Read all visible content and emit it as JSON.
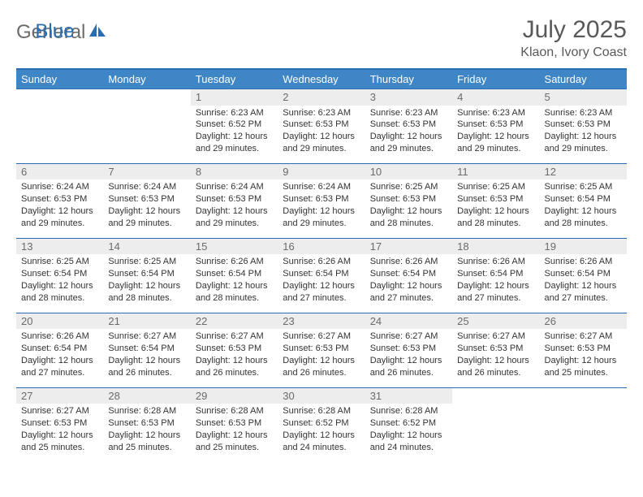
{
  "brand": {
    "part1": "General",
    "part2": "Blue"
  },
  "title": "July 2025",
  "location": "Klaon, Ivory Coast",
  "colors": {
    "header_bg": "#3e86c6",
    "header_text": "#ffffff",
    "border": "#2a6db0",
    "num_bg": "#ededed",
    "num_text": "#6b6b6b",
    "body_text": "#333333",
    "title_text": "#595959"
  },
  "day_names": [
    "Sunday",
    "Monday",
    "Tuesday",
    "Wednesday",
    "Thursday",
    "Friday",
    "Saturday"
  ],
  "weeks": [
    [
      null,
      null,
      {
        "n": "1",
        "sunrise": "6:23 AM",
        "sunset": "6:52 PM",
        "daylight": "12 hours and 29 minutes."
      },
      {
        "n": "2",
        "sunrise": "6:23 AM",
        "sunset": "6:53 PM",
        "daylight": "12 hours and 29 minutes."
      },
      {
        "n": "3",
        "sunrise": "6:23 AM",
        "sunset": "6:53 PM",
        "daylight": "12 hours and 29 minutes."
      },
      {
        "n": "4",
        "sunrise": "6:23 AM",
        "sunset": "6:53 PM",
        "daylight": "12 hours and 29 minutes."
      },
      {
        "n": "5",
        "sunrise": "6:23 AM",
        "sunset": "6:53 PM",
        "daylight": "12 hours and 29 minutes."
      }
    ],
    [
      {
        "n": "6",
        "sunrise": "6:24 AM",
        "sunset": "6:53 PM",
        "daylight": "12 hours and 29 minutes."
      },
      {
        "n": "7",
        "sunrise": "6:24 AM",
        "sunset": "6:53 PM",
        "daylight": "12 hours and 29 minutes."
      },
      {
        "n": "8",
        "sunrise": "6:24 AM",
        "sunset": "6:53 PM",
        "daylight": "12 hours and 29 minutes."
      },
      {
        "n": "9",
        "sunrise": "6:24 AM",
        "sunset": "6:53 PM",
        "daylight": "12 hours and 29 minutes."
      },
      {
        "n": "10",
        "sunrise": "6:25 AM",
        "sunset": "6:53 PM",
        "daylight": "12 hours and 28 minutes."
      },
      {
        "n": "11",
        "sunrise": "6:25 AM",
        "sunset": "6:53 PM",
        "daylight": "12 hours and 28 minutes."
      },
      {
        "n": "12",
        "sunrise": "6:25 AM",
        "sunset": "6:54 PM",
        "daylight": "12 hours and 28 minutes."
      }
    ],
    [
      {
        "n": "13",
        "sunrise": "6:25 AM",
        "sunset": "6:54 PM",
        "daylight": "12 hours and 28 minutes."
      },
      {
        "n": "14",
        "sunrise": "6:25 AM",
        "sunset": "6:54 PM",
        "daylight": "12 hours and 28 minutes."
      },
      {
        "n": "15",
        "sunrise": "6:26 AM",
        "sunset": "6:54 PM",
        "daylight": "12 hours and 28 minutes."
      },
      {
        "n": "16",
        "sunrise": "6:26 AM",
        "sunset": "6:54 PM",
        "daylight": "12 hours and 27 minutes."
      },
      {
        "n": "17",
        "sunrise": "6:26 AM",
        "sunset": "6:54 PM",
        "daylight": "12 hours and 27 minutes."
      },
      {
        "n": "18",
        "sunrise": "6:26 AM",
        "sunset": "6:54 PM",
        "daylight": "12 hours and 27 minutes."
      },
      {
        "n": "19",
        "sunrise": "6:26 AM",
        "sunset": "6:54 PM",
        "daylight": "12 hours and 27 minutes."
      }
    ],
    [
      {
        "n": "20",
        "sunrise": "6:26 AM",
        "sunset": "6:54 PM",
        "daylight": "12 hours and 27 minutes."
      },
      {
        "n": "21",
        "sunrise": "6:27 AM",
        "sunset": "6:54 PM",
        "daylight": "12 hours and 26 minutes."
      },
      {
        "n": "22",
        "sunrise": "6:27 AM",
        "sunset": "6:53 PM",
        "daylight": "12 hours and 26 minutes."
      },
      {
        "n": "23",
        "sunrise": "6:27 AM",
        "sunset": "6:53 PM",
        "daylight": "12 hours and 26 minutes."
      },
      {
        "n": "24",
        "sunrise": "6:27 AM",
        "sunset": "6:53 PM",
        "daylight": "12 hours and 26 minutes."
      },
      {
        "n": "25",
        "sunrise": "6:27 AM",
        "sunset": "6:53 PM",
        "daylight": "12 hours and 26 minutes."
      },
      {
        "n": "26",
        "sunrise": "6:27 AM",
        "sunset": "6:53 PM",
        "daylight": "12 hours and 25 minutes."
      }
    ],
    [
      {
        "n": "27",
        "sunrise": "6:27 AM",
        "sunset": "6:53 PM",
        "daylight": "12 hours and 25 minutes."
      },
      {
        "n": "28",
        "sunrise": "6:28 AM",
        "sunset": "6:53 PM",
        "daylight": "12 hours and 25 minutes."
      },
      {
        "n": "29",
        "sunrise": "6:28 AM",
        "sunset": "6:53 PM",
        "daylight": "12 hours and 25 minutes."
      },
      {
        "n": "30",
        "sunrise": "6:28 AM",
        "sunset": "6:52 PM",
        "daylight": "12 hours and 24 minutes."
      },
      {
        "n": "31",
        "sunrise": "6:28 AM",
        "sunset": "6:52 PM",
        "daylight": "12 hours and 24 minutes."
      },
      null,
      null
    ]
  ],
  "labels": {
    "sunrise": "Sunrise:",
    "sunset": "Sunset:",
    "daylight": "Daylight:"
  }
}
